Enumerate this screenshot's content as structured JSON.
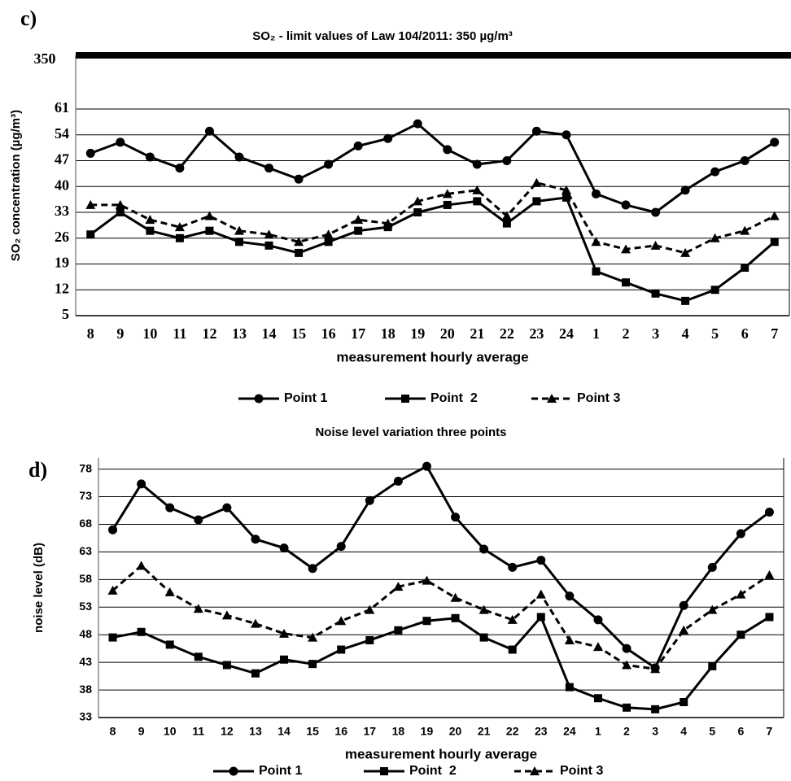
{
  "chart_data": [
    {
      "type": "line",
      "panel_label": "c)",
      "title": "SO₂ - limit values of Law 104/2011: 350 µg/m³",
      "x_label": "measurement hourly average",
      "y_label": "SO₂ concentration (µg/m³)",
      "categories": [
        "8",
        "9",
        "10",
        "11",
        "12",
        "13",
        "14",
        "15",
        "16",
        "17",
        "18",
        "19",
        "20",
        "21",
        "22",
        "23",
        "24",
        "1",
        "2",
        "3",
        "4",
        "5",
        "6",
        "7"
      ],
      "series": [
        {
          "name": "Point 1",
          "color": "#000000",
          "marker": "circle",
          "linestyle": "solid",
          "values": [
            49,
            52,
            48,
            45,
            55,
            48,
            45,
            42,
            46,
            51,
            53,
            57,
            50,
            46,
            47,
            55,
            54,
            38,
            35,
            33,
            39,
            44,
            47,
            52
          ]
        },
        {
          "name": "Point  2",
          "color": "#000000",
          "marker": "square",
          "linestyle": "solid",
          "values": [
            27,
            33,
            28,
            26,
            28,
            25,
            24,
            22,
            25,
            28,
            29,
            33,
            35,
            36,
            30,
            36,
            37,
            17,
            14,
            11,
            9,
            12,
            18,
            25
          ]
        },
        {
          "name": "Point 3",
          "color": "#000000",
          "marker": "triangle",
          "linestyle": "dashed",
          "values": [
            35,
            35,
            31,
            29,
            32,
            28,
            27,
            25,
            27,
            31,
            30,
            36,
            38,
            39,
            32,
            41,
            39,
            25,
            23,
            24,
            22,
            26,
            28,
            32
          ]
        }
      ],
      "limit": 350,
      "ylim": [
        5,
        61
      ],
      "yticks": [
        5,
        12,
        19,
        26,
        33,
        40,
        47,
        54,
        61
      ],
      "grid": true
    },
    {
      "type": "line",
      "panel_label": "d)",
      "title": "Noise level variation three points",
      "x_label": "measurement hourly average",
      "y_label": "noise level (dB)",
      "categories": [
        "8",
        "9",
        "10",
        "11",
        "12",
        "13",
        "14",
        "15",
        "16",
        "17",
        "18",
        "19",
        "20",
        "21",
        "22",
        "23",
        "24",
        "1",
        "2",
        "3",
        "4",
        "5",
        "6",
        "7"
      ],
      "series": [
        {
          "name": "Point 1",
          "color": "#000000",
          "marker": "circle",
          "linestyle": "solid",
          "values": [
            67,
            75.3,
            71,
            68.8,
            71,
            65.3,
            63.7,
            60,
            64,
            72.3,
            75.8,
            78.5,
            69.3,
            63.5,
            60.2,
            61.5,
            55,
            50.7,
            45.5,
            42,
            53.3,
            60.2,
            66.3,
            70.2
          ]
        },
        {
          "name": "Point  2",
          "color": "#000000",
          "marker": "square",
          "linestyle": "solid",
          "values": [
            47.5,
            48.5,
            46.2,
            44,
            42.5,
            41,
            43.5,
            42.7,
            45.3,
            47,
            48.8,
            50.5,
            51,
            47.5,
            45.3,
            51.2,
            38.5,
            36.5,
            34.8,
            34.5,
            35.8,
            42.3,
            48,
            51.2
          ]
        },
        {
          "name": "Point 3",
          "color": "#000000",
          "marker": "triangle",
          "linestyle": "dashed",
          "values": [
            56,
            60.5,
            55.7,
            52.7,
            51.5,
            50,
            48.2,
            47.5,
            50.5,
            52.5,
            56.7,
            57.8,
            54.7,
            52.5,
            50.7,
            55.3,
            47,
            45.8,
            42.5,
            41.8,
            48.8,
            52.5,
            55.3,
            58.8
          ]
        }
      ],
      "ylim": [
        33,
        80
      ],
      "yticks": [
        33,
        38,
        43,
        48,
        53,
        58,
        63,
        68,
        73,
        78
      ],
      "grid": true
    }
  ]
}
